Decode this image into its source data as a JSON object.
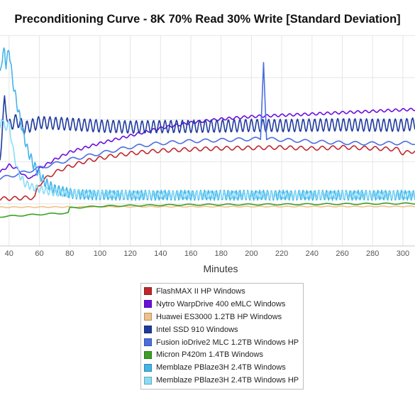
{
  "chart_data": {
    "type": "line",
    "title": "Preconditioning Curve - 8K 70% Read 30% Write [Standard Deviation]",
    "xlabel": "Minutes",
    "ylabel": "",
    "xlim": [
      34,
      308
    ],
    "ylim": [
      0,
      100
    ],
    "xticks": [
      "40",
      "60",
      "80",
      "100",
      "120",
      "140",
      "160",
      "180",
      "200",
      "220",
      "240",
      "260",
      "280",
      "300"
    ],
    "grid": true,
    "legend_position": "bottom",
    "series": [
      {
        "name": "FlashMAX II HP Windows",
        "color": "#c0272d",
        "points": [
          [
            34,
            22.4
          ],
          [
            50,
            22.8
          ],
          [
            57,
            23
          ],
          [
            59,
            28
          ],
          [
            62,
            30.9
          ],
          [
            68,
            33.9
          ],
          [
            75,
            36.6
          ],
          [
            90,
            40.2
          ],
          [
            105,
            42.4
          ],
          [
            120,
            44
          ],
          [
            140,
            45.3
          ],
          [
            160,
            45.9
          ],
          [
            180,
            46.4
          ],
          [
            200,
            46.6
          ],
          [
            220,
            46.8
          ],
          [
            240,
            46.3
          ],
          [
            260,
            46.9
          ],
          [
            280,
            46.4
          ],
          [
            297,
            45.9
          ],
          [
            300,
            44
          ],
          [
            308,
            45.2
          ]
        ]
      },
      {
        "name": "Nytro WarpDrive 400 eMLC Windows",
        "color": "#6a0fe0",
        "points": [
          [
            34,
            35
          ],
          [
            40,
            38.4
          ],
          [
            45,
            36.8
          ],
          [
            50,
            33.3
          ],
          [
            55,
            32.1
          ],
          [
            60,
            36.7
          ],
          [
            70,
            41
          ],
          [
            80,
            44.6
          ],
          [
            100,
            48.8
          ],
          [
            120,
            52.4
          ],
          [
            140,
            56
          ],
          [
            160,
            58.6
          ],
          [
            180,
            60.3
          ],
          [
            200,
            61.5
          ],
          [
            220,
            62.1
          ],
          [
            240,
            62.7
          ],
          [
            260,
            63.4
          ],
          [
            280,
            64
          ],
          [
            300,
            64.7
          ],
          [
            308,
            64.9
          ]
        ]
      },
      {
        "name": "Huawei ES3000 1.2TB HP Windows",
        "color": "#f0c08a",
        "points": [
          [
            34,
            18.4
          ],
          [
            100,
            18.6
          ],
          [
            200,
            18.7
          ],
          [
            308,
            18.8
          ]
        ]
      },
      {
        "name": "Intel SSD 910 Windows",
        "color": "#1f3a9e",
        "points": [
          [
            34,
            42
          ],
          [
            37,
            69
          ],
          [
            40,
            57
          ],
          [
            45,
            60
          ],
          [
            50,
            56
          ],
          [
            60,
            58.7
          ],
          [
            80,
            57.9
          ],
          [
            100,
            57
          ],
          [
            120,
            56.5
          ],
          [
            140,
            56.7
          ],
          [
            160,
            56.8
          ],
          [
            180,
            57
          ],
          [
            200,
            57.3
          ],
          [
            220,
            57.2
          ],
          [
            240,
            57.4
          ],
          [
            260,
            57.6
          ],
          [
            280,
            57.4
          ],
          [
            300,
            57.4
          ],
          [
            308,
            58
          ]
        ]
      },
      {
        "name": "Fusion ioDrive2 MLC 1.2TB Windows HP",
        "color": "#4a6ee0",
        "points": [
          [
            34,
            32
          ],
          [
            45,
            34
          ],
          [
            60,
            37
          ],
          [
            80,
            41
          ],
          [
            100,
            44
          ],
          [
            120,
            47
          ],
          [
            140,
            48.8
          ],
          [
            160,
            49.8
          ],
          [
            180,
            50.3
          ],
          [
            200,
            50.8
          ],
          [
            206,
            50.9
          ],
          [
            208,
            88
          ],
          [
            210,
            50.9
          ],
          [
            240,
            49.6
          ],
          [
            260,
            49
          ],
          [
            280,
            48.7
          ],
          [
            300,
            48.9
          ],
          [
            308,
            49
          ]
        ]
      },
      {
        "name": "Micron P420m 1.4TB Windows",
        "color": "#3aa024",
        "points": [
          [
            34,
            13.9
          ],
          [
            60,
            15
          ],
          [
            79,
            15.7
          ],
          [
            80,
            18
          ],
          [
            100,
            18.9
          ],
          [
            120,
            19.2
          ],
          [
            140,
            19.4
          ],
          [
            160,
            19.6
          ],
          [
            200,
            19.7
          ],
          [
            250,
            19.9
          ],
          [
            308,
            20.2
          ]
        ]
      },
      {
        "name": "Memblaze PBlaze3H 2.4TB Windows",
        "color": "#45b4ea",
        "points": [
          [
            34,
            81
          ],
          [
            35,
            88
          ],
          [
            37,
            93
          ],
          [
            38,
            86
          ],
          [
            40,
            94
          ],
          [
            42,
            80
          ],
          [
            45,
            68
          ],
          [
            48,
            58
          ],
          [
            52,
            46
          ],
          [
            56,
            38.9
          ],
          [
            60,
            34
          ],
          [
            64,
            30
          ],
          [
            70,
            27
          ],
          [
            80,
            25
          ],
          [
            90,
            24.3
          ],
          [
            120,
            24.1
          ],
          [
            200,
            24.1
          ],
          [
            308,
            24.1
          ]
        ]
      },
      {
        "name": "Memblaze PBlaze3H 2.4TB Windows HP",
        "color": "#8adcf6",
        "points": [
          [
            34,
            55
          ],
          [
            35,
            62
          ],
          [
            37,
            56
          ],
          [
            40,
            58
          ],
          [
            43,
            44
          ],
          [
            46,
            35
          ],
          [
            50,
            30
          ],
          [
            55,
            28
          ],
          [
            60,
            27
          ],
          [
            70,
            25.4
          ],
          [
            80,
            25
          ],
          [
            100,
            24.6
          ],
          [
            120,
            24.3
          ],
          [
            200,
            24.2
          ],
          [
            308,
            24.2
          ]
        ]
      }
    ]
  }
}
